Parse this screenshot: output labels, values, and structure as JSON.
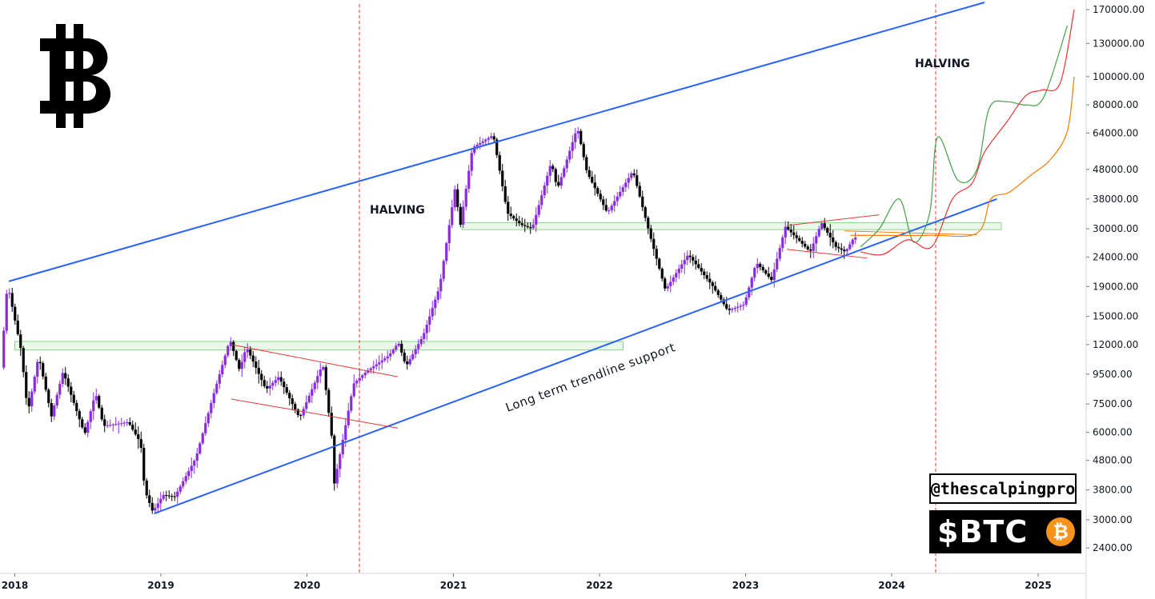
{
  "chart_data": {
    "type": "candlestick",
    "title": "",
    "xlabel": "",
    "ylabel": "",
    "y_scale": "log",
    "ylim": [
      2000,
      180000
    ],
    "yticks": [
      "170000.00",
      "130000.00",
      "100000.00",
      "80000.00",
      "64000.00",
      "48000.00",
      "38000.00",
      "30000.00",
      "24000.00",
      "19000.00",
      "15000.00",
      "12000.00",
      "9500.00",
      "7500.00",
      "6000.00",
      "4800.00",
      "3800.00",
      "3000.00",
      "2400.00"
    ],
    "xticks": [
      "2018",
      "2019",
      "2020",
      "2021",
      "2022",
      "2023",
      "2024",
      "2025"
    ],
    "price_path": [
      [
        "2017-12-01",
        10000
      ],
      [
        "2017-12-17",
        19500
      ],
      [
        "2018-01-20",
        11500
      ],
      [
        "2018-02-06",
        7000
      ],
      [
        "2018-03-05",
        11000
      ],
      [
        "2018-04-06",
        6800
      ],
      [
        "2018-05-05",
        9700
      ],
      [
        "2018-06-28",
        5900
      ],
      [
        "2018-07-25",
        8200
      ],
      [
        "2018-08-14",
        6300
      ],
      [
        "2018-10-15",
        6500
      ],
      [
        "2018-11-15",
        5500
      ],
      [
        "2018-11-25",
        3800
      ],
      [
        "2018-12-15",
        3200
      ],
      [
        "2019-01-10",
        3650
      ],
      [
        "2019-02-08",
        3600
      ],
      [
        "2019-04-02",
        4900
      ],
      [
        "2019-05-15",
        8000
      ],
      [
        "2019-06-26",
        12500
      ],
      [
        "2019-07-20",
        9800
      ],
      [
        "2019-08-06",
        11800
      ],
      [
        "2019-09-24",
        8400
      ],
      [
        "2019-10-26",
        9300
      ],
      [
        "2019-12-17",
        6700
      ],
      [
        "2020-02-13",
        10300
      ],
      [
        "2020-03-12",
        5000
      ],
      [
        "2020-03-13",
        4000
      ],
      [
        "2020-04-30",
        8800
      ],
      [
        "2020-06-01",
        9700
      ],
      [
        "2020-07-27",
        11000
      ],
      [
        "2020-08-20",
        12200
      ],
      [
        "2020-09-08",
        10100
      ],
      [
        "2020-10-21",
        12900
      ],
      [
        "2020-12-01",
        19000
      ],
      [
        "2021-01-08",
        41000
      ],
      [
        "2021-01-22",
        31000
      ],
      [
        "2021-02-21",
        57000
      ],
      [
        "2021-04-14",
        63000
      ],
      [
        "2021-05-19",
        34000
      ],
      [
        "2021-06-22",
        31000
      ],
      [
        "2021-07-20",
        30000
      ],
      [
        "2021-09-06",
        51000
      ],
      [
        "2021-09-21",
        41000
      ],
      [
        "2021-11-10",
        67000
      ],
      [
        "2021-12-04",
        47000
      ],
      [
        "2022-01-24",
        34000
      ],
      [
        "2022-03-29",
        47500
      ],
      [
        "2022-05-12",
        28000
      ],
      [
        "2022-06-18",
        18500
      ],
      [
        "2022-08-14",
        24500
      ],
      [
        "2022-10-15",
        19000
      ],
      [
        "2022-11-21",
        15700
      ],
      [
        "2023-01-01",
        16500
      ],
      [
        "2023-01-31",
        23000
      ],
      [
        "2023-03-10",
        20000
      ],
      [
        "2023-04-14",
        30500
      ],
      [
        "2023-06-15",
        25000
      ],
      [
        "2023-07-13",
        31500
      ],
      [
        "2023-08-18",
        26000
      ],
      [
        "2023-09-11",
        25000
      ],
      [
        "2023-10-02",
        28000
      ]
    ],
    "lines": [
      {
        "name": "channel-top",
        "color": "#2962ff",
        "points": [
          [
            "2017-12-17",
            19800
          ],
          [
            "2024-08-20",
            180000
          ]
        ]
      },
      {
        "name": "channel-bottom",
        "color": "#2962ff",
        "points": [
          [
            "2018-12-15",
            3150
          ],
          [
            "2024-09-20",
            38000
          ]
        ]
      },
      {
        "name": "wedge-top-2019",
        "color": "#e53935",
        "points": [
          [
            "2019-06-26",
            12000
          ],
          [
            "2020-08-15",
            9300
          ]
        ]
      },
      {
        "name": "wedge-bottom-2019",
        "color": "#e53935",
        "points": [
          [
            "2019-06-26",
            7800
          ],
          [
            "2020-08-15",
            6200
          ]
        ]
      },
      {
        "name": "wedge-top-2023",
        "color": "#e53935",
        "points": [
          [
            "2023-04-14",
            30800
          ],
          [
            "2023-12-01",
            33500
          ]
        ]
      },
      {
        "name": "wedge-bottom-2023",
        "color": "#e53935",
        "points": [
          [
            "2023-04-14",
            25500
          ],
          [
            "2023-11-01",
            23800
          ]
        ]
      },
      {
        "name": "flat-orange-2023",
        "color": "#f57c00",
        "points": [
          [
            "2023-09-05",
            29500
          ],
          [
            "2024-08-01",
            28600
          ]
        ]
      }
    ],
    "zones": [
      {
        "name": "resistance-zone-2019",
        "color": "#8ad98a",
        "from": "2018-01-01",
        "to": "2022-03-01",
        "y": [
          11500,
          12300
        ]
      },
      {
        "name": "support-zone-2021",
        "color": "#8ad98a",
        "from": "2021-01-22",
        "to": "2024-10-01",
        "y": [
          29800,
          31500
        ]
      }
    ],
    "vlines": [
      {
        "name": "halving-2020",
        "color": "#e53935",
        "date": "2020-05-11"
      },
      {
        "name": "halving-2024",
        "color": "#e53935",
        "date": "2024-04-20"
      }
    ],
    "projections": [
      {
        "name": "projection-green",
        "color": "#43a047",
        "points": [
          [
            "2023-10-15",
            26000
          ],
          [
            "2023-12-01",
            30000
          ],
          [
            "2024-01-20",
            38000
          ],
          [
            "2024-02-25",
            27000
          ],
          [
            "2024-04-05",
            34000
          ],
          [
            "2024-04-25",
            62000
          ],
          [
            "2024-06-15",
            44000
          ],
          [
            "2024-08-01",
            48000
          ],
          [
            "2024-09-01",
            78000
          ],
          [
            "2024-10-15",
            82000
          ],
          [
            "2024-12-01",
            80000
          ],
          [
            "2025-01-15",
            85000
          ],
          [
            "2025-03-15",
            150000
          ]
        ]
      },
      {
        "name": "projection-red",
        "color": "#e53935",
        "points": [
          [
            "2023-10-15",
            25000
          ],
          [
            "2023-12-10",
            24500
          ],
          [
            "2024-02-10",
            27500
          ],
          [
            "2024-04-10",
            26000
          ],
          [
            "2024-06-01",
            38000
          ],
          [
            "2024-07-20",
            43000
          ],
          [
            "2024-08-20",
            55000
          ],
          [
            "2024-10-15",
            70000
          ],
          [
            "2024-12-01",
            86000
          ],
          [
            "2025-01-10",
            90000
          ],
          [
            "2025-02-25",
            95000
          ],
          [
            "2025-04-01",
            170000
          ]
        ]
      },
      {
        "name": "projection-orange",
        "color": "#f57c00",
        "points": [
          [
            "2023-09-20",
            28500
          ],
          [
            "2024-04-01",
            28500
          ],
          [
            "2024-08-01",
            29000
          ],
          [
            "2024-09-05",
            38000
          ],
          [
            "2024-10-20",
            40000
          ],
          [
            "2024-12-15",
            46000
          ],
          [
            "2025-02-01",
            52000
          ],
          [
            "2025-03-15",
            65000
          ],
          [
            "2025-04-01",
            100000
          ]
        ]
      }
    ]
  },
  "annotations": {
    "halving_left": "HALVING",
    "halving_right": "HALVING",
    "trendline": "Long term trendline support"
  },
  "branding": {
    "handle": "@thescalpingpro",
    "ticker": "$BTC",
    "coin_glyph": "₿",
    "logo_glyph": "₿"
  },
  "colors": {
    "candle_up": "#8a2be2",
    "candle_down": "#000000",
    "channel": "#2962ff",
    "halving": "#e53935"
  }
}
